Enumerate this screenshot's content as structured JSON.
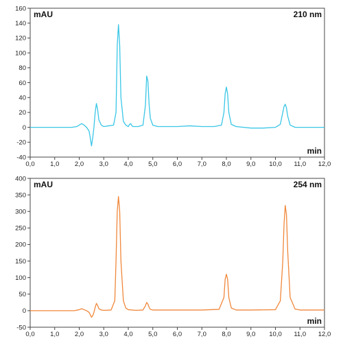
{
  "chart_data": [
    {
      "type": "line",
      "title": "",
      "ylabel": "mAU",
      "xlabel": "min",
      "wavelength_label": "210 nm",
      "color": "#39c6e6",
      "xlim": [
        0,
        12
      ],
      "ylim": [
        -40,
        160
      ],
      "x_ticks": [
        "0,0",
        "1,0",
        "2,0",
        "3,0",
        "4,0",
        "5,0",
        "6,0",
        "7,0",
        "8,0",
        "9,0",
        "10,0",
        "11,0",
        "12,0"
      ],
      "y_ticks": [
        "-40",
        "-20",
        "0",
        "20",
        "40",
        "60",
        "80",
        "100",
        "120",
        "140",
        "160"
      ],
      "y_tick_values": [
        -40,
        -20,
        0,
        20,
        40,
        60,
        80,
        100,
        120,
        140,
        160
      ],
      "series": [
        {
          "x": [
            0.0,
            1.5,
            1.7,
            1.9,
            2.0,
            2.1,
            2.2,
            2.3,
            2.4,
            2.45,
            2.5,
            2.55,
            2.6,
            2.65,
            2.7,
            2.75,
            2.8,
            2.9,
            3.0,
            3.2,
            3.4,
            3.5,
            3.55,
            3.6,
            3.65,
            3.7,
            3.8,
            3.9,
            4.0,
            4.05,
            4.1,
            4.15,
            4.2,
            4.4,
            4.6,
            4.7,
            4.75,
            4.8,
            4.85,
            4.9,
            5.0,
            5.2,
            6.0,
            6.5,
            7.0,
            7.5,
            7.8,
            7.9,
            7.95,
            8.0,
            8.05,
            8.1,
            8.2,
            8.4,
            9.0,
            9.5,
            10.0,
            10.2,
            10.3,
            10.35,
            10.4,
            10.45,
            10.5,
            10.6,
            10.8,
            11.0,
            12.0
          ],
          "y": [
            0,
            0,
            0,
            1,
            3,
            5,
            3,
            0,
            -5,
            -14,
            -25,
            -14,
            0,
            20,
            32,
            24,
            10,
            3,
            1,
            2,
            3,
            20,
            110,
            138,
            110,
            40,
            8,
            3,
            1,
            4,
            5,
            2,
            1,
            1,
            3,
            30,
            69,
            62,
            30,
            12,
            3,
            1,
            1,
            2,
            1,
            1,
            3,
            20,
            45,
            54,
            45,
            20,
            4,
            1,
            -1,
            -1,
            0,
            4,
            20,
            28,
            31,
            26,
            15,
            3,
            0,
            0,
            0
          ]
        }
      ]
    },
    {
      "type": "line",
      "title": "",
      "ylabel": "mAU",
      "xlabel": "min",
      "wavelength_label": "254 nm",
      "color": "#f0873a",
      "xlim": [
        0,
        12
      ],
      "ylim": [
        -50,
        400
      ],
      "x_ticks": [
        "0,0",
        "1,0",
        "2,0",
        "3,0",
        "4,0",
        "5,0",
        "6,0",
        "7,0",
        "8,0",
        "9,0",
        "10,0",
        "11,0",
        "12,0"
      ],
      "y_ticks": [
        "-50",
        "0",
        "50",
        "100",
        "150",
        "200",
        "250",
        "300",
        "350",
        "400"
      ],
      "y_tick_values": [
        -50,
        0,
        50,
        100,
        150,
        200,
        250,
        300,
        350,
        400
      ],
      "series": [
        {
          "x": [
            0.0,
            1.8,
            2.0,
            2.1,
            2.2,
            2.3,
            2.4,
            2.45,
            2.5,
            2.55,
            2.6,
            2.65,
            2.7,
            2.75,
            2.8,
            2.9,
            3.0,
            3.3,
            3.45,
            3.5,
            3.55,
            3.6,
            3.65,
            3.7,
            3.8,
            3.9,
            4.0,
            4.3,
            4.6,
            4.7,
            4.75,
            4.8,
            4.85,
            4.9,
            5.0,
            6.0,
            7.0,
            7.7,
            7.9,
            7.95,
            8.0,
            8.05,
            8.1,
            8.2,
            8.4,
            9.0,
            10.0,
            10.2,
            10.3,
            10.35,
            10.4,
            10.45,
            10.5,
            10.6,
            10.8,
            11.0,
            12.0
          ],
          "y": [
            0,
            0,
            3,
            6,
            3,
            0,
            -5,
            -12,
            -20,
            -15,
            -5,
            10,
            22,
            16,
            6,
            2,
            1,
            2,
            30,
            150,
            300,
            345,
            300,
            150,
            30,
            8,
            3,
            1,
            2,
            15,
            25,
            20,
            10,
            4,
            2,
            2,
            2,
            4,
            40,
            95,
            110,
            95,
            40,
            8,
            2,
            2,
            3,
            30,
            150,
            260,
            318,
            290,
            180,
            40,
            5,
            2,
            2
          ]
        }
      ]
    }
  ]
}
